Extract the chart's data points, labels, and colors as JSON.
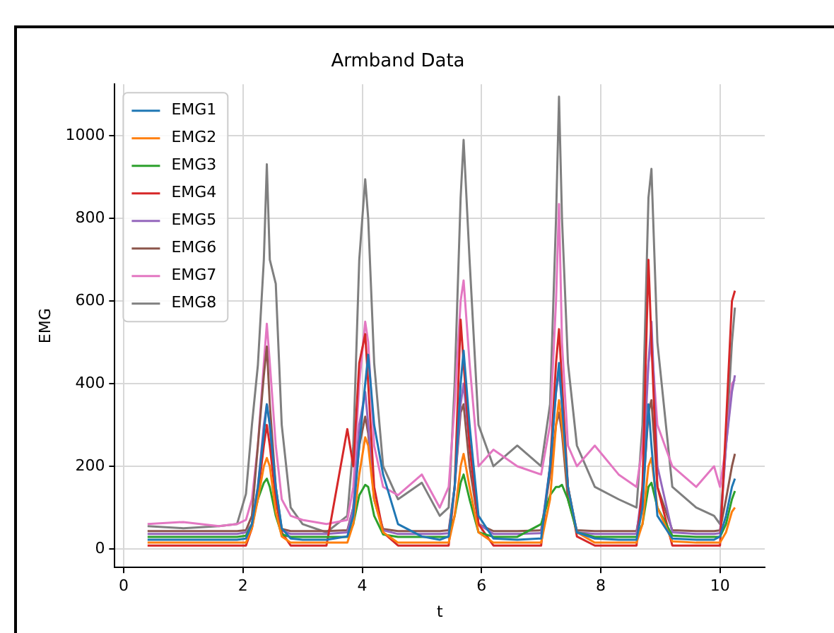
{
  "chart_data": {
    "type": "line",
    "title": "Armband Data",
    "xlabel": "t",
    "ylabel": "EMG",
    "x": [
      0.4,
      1.0,
      1.6,
      1.9,
      2.05,
      2.15,
      2.25,
      2.35,
      2.4,
      2.45,
      2.55,
      2.65,
      2.8,
      3.0,
      3.4,
      3.75,
      3.85,
      3.95,
      4.05,
      4.1,
      4.2,
      4.35,
      4.6,
      5.0,
      5.3,
      5.45,
      5.55,
      5.65,
      5.7,
      5.8,
      5.95,
      6.2,
      6.6,
      7.0,
      7.15,
      7.25,
      7.3,
      7.35,
      7.45,
      7.6,
      7.9,
      8.3,
      8.6,
      8.7,
      8.8,
      8.85,
      8.95,
      9.2,
      9.6,
      9.9,
      10.0,
      10.1,
      10.2,
      10.25
    ],
    "series": [
      {
        "name": "EMG1",
        "color": "#1f77b4",
        "values": [
          22,
          22,
          22,
          22,
          25,
          60,
          150,
          280,
          350,
          300,
          150,
          50,
          25,
          22,
          22,
          30,
          80,
          250,
          400,
          470,
          300,
          180,
          60,
          30,
          22,
          30,
          150,
          400,
          480,
          300,
          80,
          25,
          22,
          25,
          200,
          380,
          450,
          350,
          150,
          40,
          25,
          22,
          22,
          100,
          350,
          250,
          80,
          25,
          22,
          22,
          30,
          80,
          150,
          170
        ]
      },
      {
        "name": "EMG2",
        "color": "#ff7f0e",
        "values": [
          15,
          15,
          15,
          15,
          15,
          50,
          120,
          200,
          220,
          200,
          90,
          30,
          15,
          15,
          15,
          15,
          60,
          180,
          270,
          250,
          120,
          40,
          15,
          15,
          15,
          15,
          80,
          200,
          230,
          150,
          40,
          15,
          15,
          15,
          120,
          300,
          360,
          300,
          150,
          40,
          15,
          15,
          15,
          60,
          200,
          220,
          100,
          18,
          15,
          15,
          15,
          40,
          90,
          100
        ]
      },
      {
        "name": "EMG3",
        "color": "#2ca02c",
        "values": [
          29,
          29,
          29,
          29,
          32,
          60,
          120,
          160,
          170,
          150,
          80,
          35,
          29,
          29,
          29,
          29,
          60,
          130,
          155,
          150,
          80,
          35,
          29,
          29,
          29,
          29,
          80,
          160,
          180,
          120,
          40,
          29,
          29,
          60,
          130,
          150,
          150,
          155,
          120,
          40,
          29,
          29,
          29,
          60,
          150,
          160,
          100,
          32,
          29,
          29,
          29,
          60,
          120,
          140
        ]
      },
      {
        "name": "EMG4",
        "color": "#d62728",
        "values": [
          8,
          8,
          8,
          8,
          8,
          50,
          130,
          250,
          300,
          250,
          120,
          40,
          8,
          8,
          8,
          290,
          200,
          450,
          520,
          400,
          150,
          40,
          8,
          8,
          8,
          8,
          150,
          555,
          450,
          250,
          60,
          8,
          8,
          8,
          200,
          450,
          532,
          400,
          150,
          30,
          8,
          8,
          8,
          150,
          700,
          500,
          150,
          8,
          8,
          8,
          8,
          300,
          600,
          625
        ]
      },
      {
        "name": "EMG5",
        "color": "#9467bd",
        "values": [
          36,
          36,
          36,
          36,
          40,
          60,
          150,
          300,
          350,
          300,
          120,
          45,
          36,
          36,
          36,
          40,
          100,
          300,
          380,
          300,
          120,
          45,
          36,
          36,
          36,
          38,
          150,
          350,
          400,
          250,
          60,
          36,
          36,
          38,
          200,
          380,
          430,
          350,
          150,
          40,
          36,
          36,
          36,
          150,
          450,
          550,
          200,
          40,
          36,
          36,
          38,
          250,
          380,
          420
        ]
      },
      {
        "name": "EMG6",
        "color": "#8c564b",
        "values": [
          43,
          43,
          43,
          43,
          45,
          80,
          250,
          420,
          490,
          350,
          150,
          48,
          43,
          43,
          43,
          45,
          100,
          250,
          320,
          280,
          120,
          48,
          43,
          43,
          43,
          45,
          150,
          330,
          350,
          200,
          60,
          43,
          43,
          45,
          180,
          300,
          330,
          280,
          120,
          45,
          43,
          43,
          43,
          120,
          330,
          360,
          150,
          45,
          43,
          43,
          45,
          120,
          200,
          230
        ]
      },
      {
        "name": "EMG7",
        "color": "#e377c2",
        "values": [
          60,
          65,
          55,
          60,
          70,
          120,
          250,
          450,
          545,
          450,
          250,
          120,
          80,
          70,
          60,
          70,
          150,
          400,
          550,
          500,
          250,
          150,
          130,
          180,
          100,
          150,
          350,
          600,
          650,
          450,
          200,
          240,
          200,
          180,
          300,
          600,
          835,
          500,
          250,
          200,
          250,
          180,
          150,
          250,
          450,
          500,
          300,
          200,
          150,
          200,
          150,
          250,
          400,
          410
        ]
      },
      {
        "name": "EMG8",
        "color": "#7f7f7f",
        "values": [
          55,
          50,
          55,
          60,
          133,
          300,
          445,
          700,
          931,
          700,
          642,
          300,
          100,
          60,
          40,
          80,
          250,
          700,
          895,
          800,
          450,
          200,
          120,
          160,
          80,
          100,
          400,
          850,
          990,
          700,
          300,
          200,
          250,
          200,
          350,
          800,
          1095,
          800,
          450,
          250,
          150,
          120,
          100,
          300,
          850,
          920,
          500,
          150,
          100,
          80,
          60,
          250,
          500,
          584
        ]
      }
    ],
    "xlim": [
      -0.15,
      10.75
    ],
    "xticks": [
      0,
      2,
      4,
      6,
      8,
      10
    ],
    "ylim": [
      -45,
      1125
    ],
    "yticks": [
      0,
      200,
      400,
      600,
      800,
      1000
    ],
    "grid": true,
    "legend": "top left",
    "marker": "none",
    "line_style": "solid"
  }
}
